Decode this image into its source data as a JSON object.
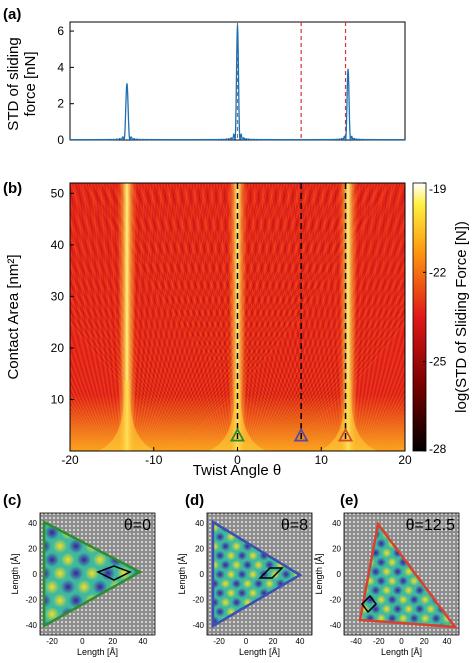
{
  "panels": {
    "a": "(a)",
    "b": "(b)",
    "c": "(c)",
    "d": "(d)",
    "e": "(e)"
  },
  "chart_data": [
    {
      "type": "line",
      "panel": "(a)",
      "ylabel_line1": "STD of sliding",
      "ylabel_line2": "force [nN]",
      "xlim": [
        -20,
        20
      ],
      "ylim": [
        0,
        6.5
      ],
      "yticks": [
        "0",
        "2",
        "4",
        "6"
      ],
      "line_color": "#1f6fb4",
      "peaks": [
        {
          "x": -13.2,
          "y": 3.1,
          "width": 0.35
        },
        {
          "x": 0,
          "y": 6.3,
          "width": 0.3
        },
        {
          "x": 13.2,
          "y": 3.9,
          "width": 0.3
        }
      ],
      "vlines": [
        {
          "x": 0,
          "color": "#7a7a7a"
        },
        {
          "x": 7.6,
          "color": "#e03030"
        },
        {
          "x": 12.9,
          "color": "#e03030"
        }
      ]
    },
    {
      "type": "heatmap",
      "panel": "(b)",
      "xlabel": "Twist Angle θ",
      "ylabel": "Contact Area [nm²]",
      "xlim": [
        -20,
        20
      ],
      "ylim": [
        0,
        52
      ],
      "xticks": [
        "-20",
        "-10",
        "0",
        "10",
        "20"
      ],
      "yticks": [
        "10",
        "20",
        "30",
        "40",
        "50"
      ],
      "colorbar_label": "log(STD of Sliding Force [N])",
      "colorbar_ticks": [
        "-19",
        "-22",
        "-25",
        "-28"
      ],
      "colorbar_range": [
        -28,
        -19
      ],
      "bright_ridges_x": [
        -13.2,
        0,
        13.2
      ],
      "dashed_lines_x": [
        0,
        7.6,
        12.9
      ],
      "markers": [
        {
          "x": 0,
          "y": 3,
          "color": "#2e8b2e"
        },
        {
          "x": 7.6,
          "y": 3,
          "color": "#5a4aa0"
        },
        {
          "x": 12.9,
          "y": 3,
          "color": "#d0502a"
        }
      ]
    },
    {
      "type": "heatmap",
      "panel": "(c)",
      "title": "θ=0",
      "xlabel": "Length [Å]",
      "ylabel": "Length [Å]",
      "xticks": [
        "-20",
        "0",
        "20",
        "40"
      ],
      "yticks": [
        "40",
        "20",
        "0",
        "-20",
        "-40"
      ],
      "border_color": "#2e8b2e"
    },
    {
      "type": "heatmap",
      "panel": "(d)",
      "title": "θ=8",
      "xlabel": "Length [Å]",
      "ylabel": "Length [Å]",
      "xticks": [
        "-20",
        "0",
        "20",
        "40"
      ],
      "yticks": [
        "40",
        "20",
        "0",
        "-20",
        "-40"
      ],
      "border_color": "#3c4fb0"
    },
    {
      "type": "heatmap",
      "panel": "(e)",
      "title": "θ=12.5",
      "xlabel": "Length [Å]",
      "ylabel": "Length [Å]",
      "xticks": [
        "-40",
        "-20",
        "0",
        "20",
        "40"
      ],
      "yticks": [
        "40",
        "20",
        "0",
        "-20",
        "-40"
      ],
      "border_color": "#d84030"
    }
  ]
}
